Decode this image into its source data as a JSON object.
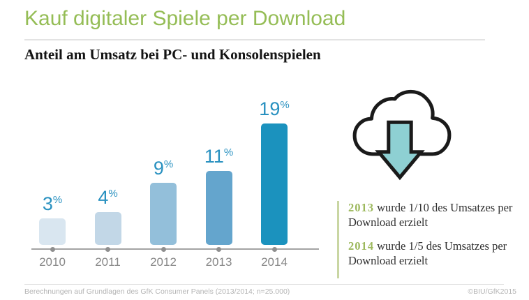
{
  "page": {
    "title": "Kauf digitaler Spiele per Download",
    "subtitle": "Anteil am Umsatz bei PC- und Konsolenspielen"
  },
  "chart_data": {
    "type": "bar",
    "title": "Kauf digitaler Spiele per Download",
    "subtitle": "Anteil am Umsatz bei PC- und Konsolenspielen",
    "categories": [
      "2010",
      "2011",
      "2012",
      "2013",
      "2014"
    ],
    "values": [
      3,
      4,
      9,
      11,
      19
    ],
    "unit": "%",
    "ylim": [
      0,
      20
    ],
    "gridlines": false,
    "legend": false,
    "value_labels_above_bars": true,
    "bar_colors": [
      "#d9e6f0",
      "#c2d7e7",
      "#93bfda",
      "#64a5cd",
      "#1b92be"
    ],
    "value_label_color": "#2991c0",
    "axis_color": "#a3a3a3"
  },
  "icon": {
    "name": "cloud-download",
    "arrow_color": "#8ed0d3",
    "outline_color": "#1a1a1a"
  },
  "annotations": {
    "items": [
      {
        "year": "2013",
        "text": " wurde 1/10 des Umsatzes per Download erzielt"
      },
      {
        "year": "2014",
        "text": " wurde 1/5 des Umsatzes per Download erzielt"
      }
    ],
    "year_color": "#9cb85c"
  },
  "footer": {
    "source": "Berechnungen auf Grundlagen des GfK Consumer Panels (2013/2014; n=25.000)",
    "copyright": "©BIU/GfK2015"
  },
  "colors": {
    "title_green": "#95bd56",
    "divider_gray": "#e3e3e3",
    "footer_gray": "#b4b4b4"
  }
}
